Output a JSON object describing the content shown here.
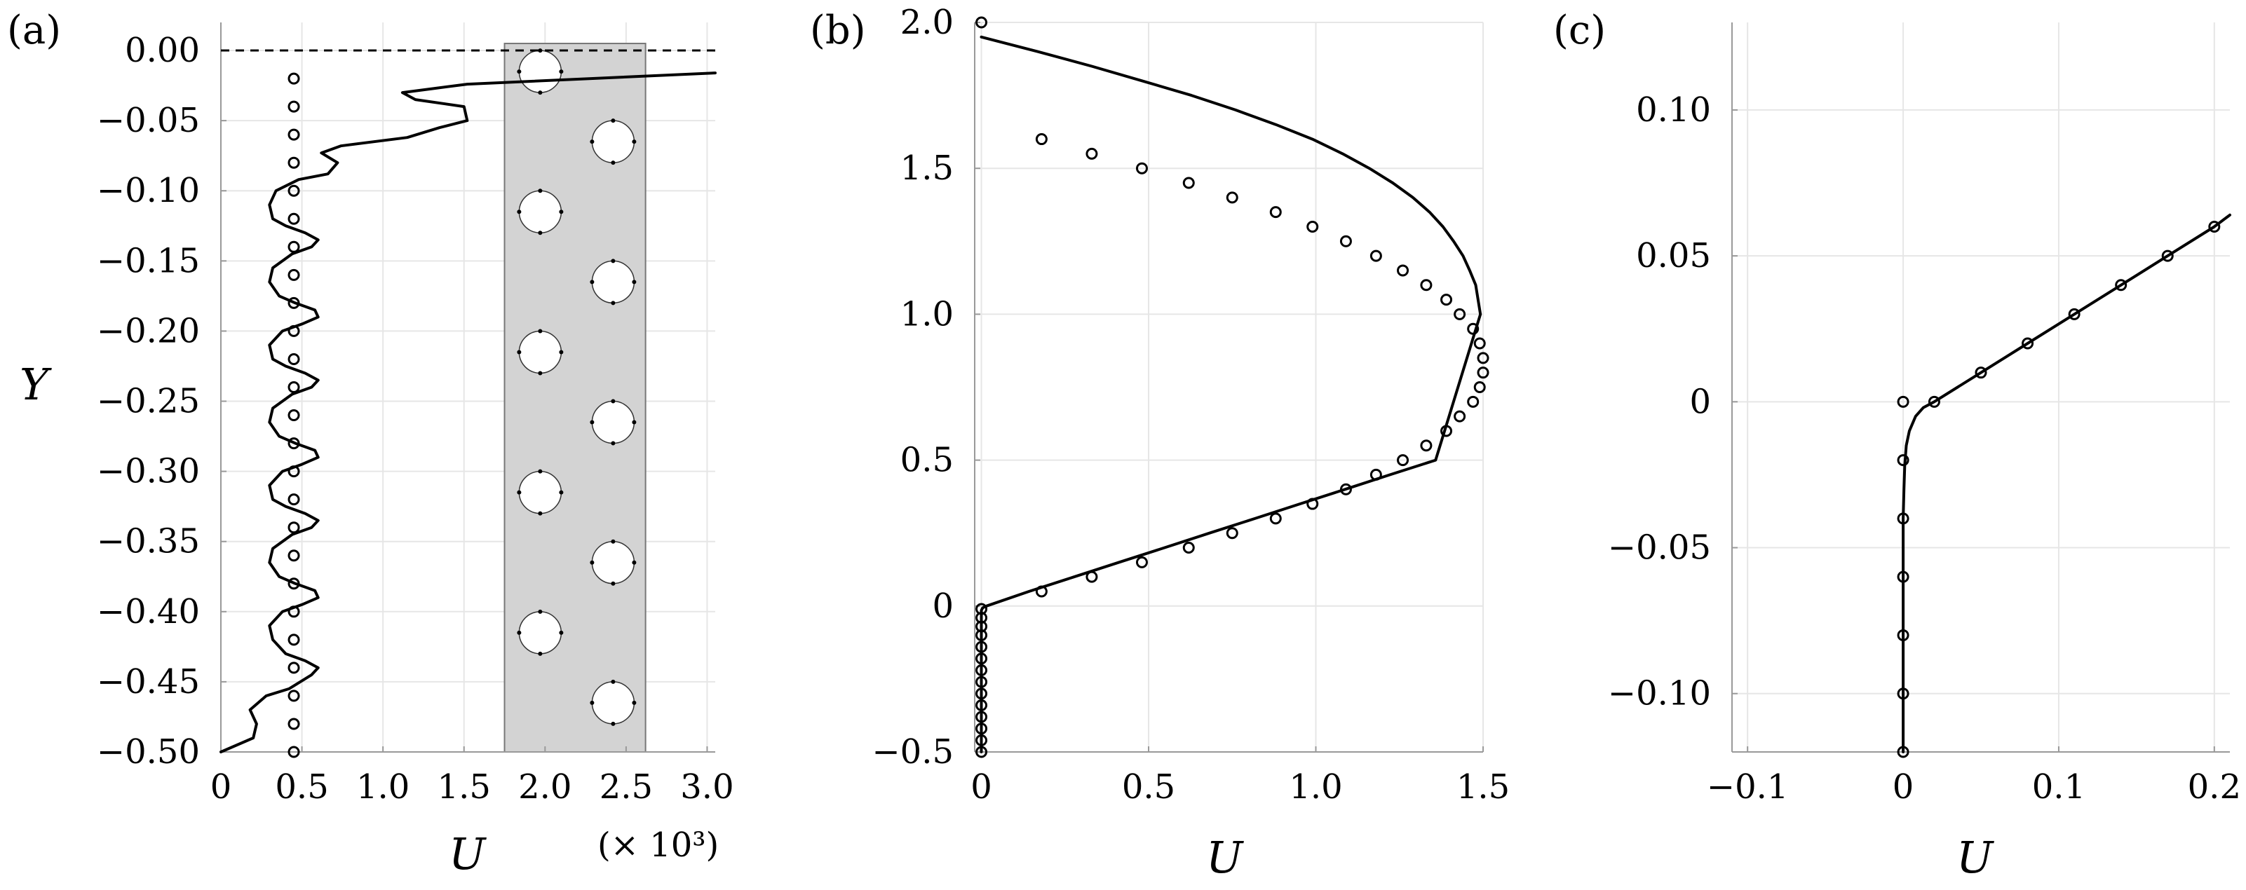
{
  "panels": {
    "a": {
      "label": "(a)"
    },
    "b": {
      "label": "(b)"
    },
    "c": {
      "label": "(c)"
    }
  },
  "axes": {
    "y_label": "Y",
    "u_label": "U",
    "scale_note": "(× 10³)"
  },
  "colors": {
    "line": "#000000",
    "grid": "#e6e6e6",
    "shade": "#d3d3d3",
    "axis": "#999999"
  },
  "chart_data": [
    {
      "type": "line",
      "panel": "a",
      "xlabel": "U",
      "ylabel": "Y",
      "xlim": [
        0,
        3.05
      ],
      "ylim": [
        -0.5,
        0.02
      ],
      "xticks": [
        0,
        0.5,
        1.0,
        1.5,
        2.0,
        2.5,
        3.0
      ],
      "xtick_labels": [
        "0",
        "0.5",
        "1.0",
        "1.5",
        "2.0",
        "2.5",
        "3.0"
      ],
      "yticks": [
        0.0,
        -0.05,
        -0.1,
        -0.15,
        -0.2,
        -0.25,
        -0.3,
        -0.35,
        -0.4,
        -0.45,
        -0.5
      ],
      "ytick_labels": [
        "0.00",
        "−0.05",
        "−0.10",
        "−0.15",
        "−0.20",
        "−0.25",
        "−0.30",
        "−0.35",
        "−0.40",
        "−0.45",
        "−0.50"
      ],
      "x_multiplier": "(× 10³)",
      "grid": true,
      "reference_line_y": 0.0,
      "shaded_band": {
        "x": [
          1.75,
          2.62
        ],
        "y": [
          -0.5,
          0.005
        ]
      },
      "inset_circles": [
        {
          "x": 1.97,
          "y": -0.015
        },
        {
          "x": 2.42,
          "y": -0.065
        },
        {
          "x": 1.97,
          "y": -0.115
        },
        {
          "x": 2.42,
          "y": -0.165
        },
        {
          "x": 1.97,
          "y": -0.215
        },
        {
          "x": 2.42,
          "y": -0.265
        },
        {
          "x": 1.97,
          "y": -0.315
        },
        {
          "x": 2.42,
          "y": -0.365
        },
        {
          "x": 1.97,
          "y": -0.415
        },
        {
          "x": 2.42,
          "y": -0.465
        }
      ],
      "series": [
        {
          "style": "line",
          "x": [
            0.0,
            0.2,
            0.22,
            0.18,
            0.28,
            0.42,
            0.56,
            0.6,
            0.52,
            0.4,
            0.32,
            0.3,
            0.38,
            0.5,
            0.6,
            0.58,
            0.46,
            0.36,
            0.3,
            0.32,
            0.44,
            0.56,
            0.6,
            0.52,
            0.4,
            0.32,
            0.3,
            0.38,
            0.5,
            0.6,
            0.58,
            0.46,
            0.36,
            0.3,
            0.32,
            0.44,
            0.56,
            0.6,
            0.52,
            0.4,
            0.32,
            0.3,
            0.38,
            0.5,
            0.6,
            0.58,
            0.46,
            0.36,
            0.3,
            0.32,
            0.44,
            0.56,
            0.6,
            0.52,
            0.4,
            0.32,
            0.3,
            0.34,
            0.48,
            0.66,
            0.72,
            0.62,
            0.74,
            1.15,
            1.35,
            1.52,
            1.5,
            1.2,
            1.12,
            1.52,
            3.05
          ],
          "y": [
            -0.5,
            -0.49,
            -0.48,
            -0.47,
            -0.46,
            -0.455,
            -0.445,
            -0.44,
            -0.435,
            -0.43,
            -0.42,
            -0.41,
            -0.4,
            -0.395,
            -0.39,
            -0.385,
            -0.38,
            -0.375,
            -0.365,
            -0.355,
            -0.345,
            -0.34,
            -0.335,
            -0.33,
            -0.325,
            -0.32,
            -0.31,
            -0.3,
            -0.295,
            -0.29,
            -0.285,
            -0.28,
            -0.275,
            -0.265,
            -0.255,
            -0.245,
            -0.24,
            -0.235,
            -0.23,
            -0.225,
            -0.22,
            -0.21,
            -0.2,
            -0.195,
            -0.19,
            -0.185,
            -0.18,
            -0.175,
            -0.165,
            -0.155,
            -0.145,
            -0.14,
            -0.135,
            -0.13,
            -0.125,
            -0.12,
            -0.11,
            -0.1,
            -0.092,
            -0.088,
            -0.08,
            -0.073,
            -0.068,
            -0.062,
            -0.055,
            -0.05,
            -0.04,
            -0.035,
            -0.03,
            -0.024,
            -0.016
          ]
        },
        {
          "style": "markers",
          "x": [
            0.45,
            0.45,
            0.45,
            0.45,
            0.45,
            0.45,
            0.45,
            0.45,
            0.45,
            0.45,
            0.45,
            0.45,
            0.45,
            0.45,
            0.45,
            0.45,
            0.45,
            0.45,
            0.45,
            0.45,
            0.45,
            0.45,
            0.45,
            0.45,
            0.45
          ],
          "y": [
            -0.02,
            -0.04,
            -0.06,
            -0.08,
            -0.1,
            -0.12,
            -0.14,
            -0.16,
            -0.18,
            -0.2,
            -0.22,
            -0.24,
            -0.26,
            -0.28,
            -0.3,
            -0.32,
            -0.34,
            -0.36,
            -0.38,
            -0.4,
            -0.42,
            -0.44,
            -0.46,
            -0.48,
            -0.5
          ]
        }
      ]
    },
    {
      "type": "line",
      "panel": "b",
      "xlabel": "U",
      "ylabel": "",
      "xlim": [
        -0.02,
        1.5
      ],
      "ylim": [
        -0.5,
        2.0
      ],
      "xticks": [
        0,
        0.5,
        1.0,
        1.5
      ],
      "xtick_labels": [
        "0",
        "0.5",
        "1.0",
        "1.5"
      ],
      "yticks": [
        -0.5,
        0,
        0.5,
        1.0,
        1.5,
        2.0
      ],
      "ytick_labels": [
        "−0.5",
        "0",
        "0.5",
        "1.0",
        "1.5",
        "2.0"
      ],
      "grid": true,
      "series": [
        {
          "style": "line",
          "x": [
            0.0,
            0.0,
            0.0,
            0.0,
            0.0,
            0.0,
            0.0,
            0.0,
            0.0,
            0.0,
            0.0,
            0.0,
            0.0,
            0.0,
            0.0,
            0.0,
            0.004,
            0.015,
            0.142,
            0.277,
            0.412,
            0.548,
            0.682,
            0.818,
            0.952,
            1.088,
            1.222,
            1.358,
            1.492,
            1.478,
            1.46,
            1.44,
            1.412,
            1.38,
            1.34,
            1.29,
            1.23,
            1.16,
            1.08,
            0.99,
            0.88,
            0.76,
            0.628,
            0.48,
            0.33,
            0.168,
            0.0
          ],
          "y": [
            -0.5,
            -0.46,
            -0.42,
            -0.38,
            -0.34,
            -0.3,
            -0.26,
            -0.22,
            -0.18,
            -0.14,
            -0.11,
            -0.08,
            -0.06,
            -0.04,
            -0.025,
            -0.015,
            -0.006,
            0.0,
            0.05,
            0.1,
            0.15,
            0.2,
            0.25,
            0.3,
            0.35,
            0.4,
            0.45,
            0.5,
            1.0,
            1.1,
            1.15,
            1.2,
            1.25,
            1.3,
            1.35,
            1.4,
            1.45,
            1.5,
            1.55,
            1.6,
            1.65,
            1.7,
            1.75,
            1.8,
            1.85,
            1.9,
            1.95
          ]
        },
        {
          "style": "markers",
          "x": [
            0.0,
            0.0,
            0.0,
            0.0,
            0.0,
            0.0,
            0.0,
            0.0,
            0.0,
            0.0,
            0.0,
            0.0,
            0.0,
            0.0,
            0.18,
            0.33,
            0.48,
            0.62,
            0.75,
            0.88,
            0.99,
            1.09,
            1.18,
            1.26,
            1.33,
            1.39,
            1.43,
            1.47,
            1.49,
            1.5,
            1.5,
            1.49,
            1.47,
            1.43,
            1.39,
            1.33,
            1.26,
            1.18,
            1.09,
            0.99,
            0.88,
            0.75,
            0.62,
            0.48,
            0.33,
            0.18,
            0.0
          ],
          "y": [
            -0.5,
            -0.46,
            -0.42,
            -0.38,
            -0.34,
            -0.3,
            -0.26,
            -0.22,
            -0.18,
            -0.14,
            -0.1,
            -0.07,
            -0.04,
            -0.01,
            0.05,
            0.1,
            0.15,
            0.2,
            0.25,
            0.3,
            0.35,
            0.4,
            0.45,
            0.5,
            0.55,
            0.6,
            0.65,
            0.7,
            0.75,
            0.8,
            0.85,
            0.9,
            0.95,
            1.0,
            1.05,
            1.1,
            1.15,
            1.2,
            1.25,
            1.3,
            1.35,
            1.4,
            1.45,
            1.5,
            1.55,
            1.6,
            2.0
          ]
        }
      ]
    },
    {
      "type": "line",
      "panel": "c",
      "xlabel": "U",
      "ylabel": "",
      "xlim": [
        -0.11,
        0.21
      ],
      "ylim": [
        -0.12,
        0.13
      ],
      "xticks": [
        -0.1,
        0,
        0.1,
        0.2
      ],
      "xtick_labels": [
        "−0.1",
        "0",
        "0.1",
        "0.2"
      ],
      "yticks": [
        -0.1,
        -0.05,
        0,
        0.05,
        0.1
      ],
      "ytick_labels": [
        "−0.10",
        "−0.05",
        "0",
        "0.05",
        "0.10"
      ],
      "grid": true,
      "series": [
        {
          "style": "line",
          "x": [
            0.0,
            0.0,
            0.0,
            0.0,
            0.0,
            0.0005,
            0.001,
            0.002,
            0.004,
            0.008,
            0.013,
            0.02,
            0.035,
            0.05,
            0.08,
            0.11,
            0.14,
            0.17,
            0.2,
            0.21
          ],
          "y": [
            -0.12,
            -0.1,
            -0.08,
            -0.06,
            -0.04,
            -0.03,
            -0.022,
            -0.015,
            -0.01,
            -0.005,
            -0.002,
            0.0,
            0.005,
            0.01,
            0.02,
            0.03,
            0.04,
            0.05,
            0.06,
            0.064
          ]
        },
        {
          "style": "markers",
          "x": [
            0.0,
            0.0,
            0.0,
            0.0,
            0.0,
            0.0,
            0.0,
            0.02,
            0.05,
            0.08,
            0.11,
            0.14,
            0.17,
            0.2
          ],
          "y": [
            -0.12,
            -0.1,
            -0.08,
            -0.06,
            -0.04,
            -0.02,
            0.0,
            0.0,
            0.01,
            0.02,
            0.03,
            0.04,
            0.05,
            0.06
          ]
        }
      ]
    }
  ]
}
